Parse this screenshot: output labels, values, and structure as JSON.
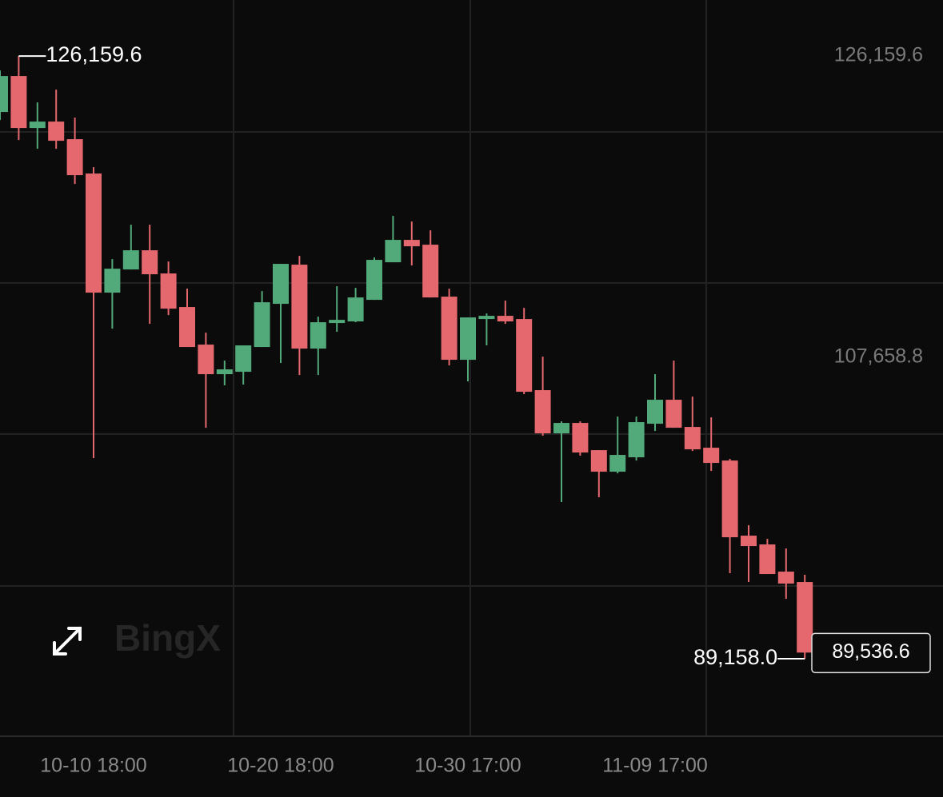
{
  "chart_data": {
    "type": "candlestick",
    "watermark": "BingX",
    "categories": [
      null,
      null,
      null,
      null,
      null,
      "10-10 18:00",
      null,
      null,
      null,
      null,
      null,
      null,
      null,
      null,
      null,
      "10-20 18:00",
      null,
      null,
      null,
      null,
      null,
      null,
      null,
      null,
      null,
      "10-30 17:00",
      null,
      null,
      null,
      null,
      null,
      null,
      null,
      null,
      null,
      "11-09 17:00",
      null,
      null,
      null,
      null,
      null,
      null,
      null,
      null
    ],
    "open": [
      122725,
      124933,
      121743,
      122136,
      121056,
      118946,
      111634,
      113057,
      114235,
      112812,
      110751,
      108444,
      106628,
      106776,
      108297,
      110947,
      113352,
      108199,
      109769,
      109867,
      111192,
      113499,
      114873,
      114578,
      111389,
      107512,
      110014,
      110211,
      110014,
      105647,
      102997,
      103635,
      101966,
      100641,
      101525,
      103586,
      105058,
      103389,
      102114,
      101328,
      96715,
      96176,
      94507,
      93869
    ],
    "high": [
      125276,
      126159.6,
      123314,
      124099,
      122381,
      119339,
      113695,
      115805,
      115805,
      113548,
      111879,
      109180,
      107463,
      108395,
      111732,
      113401,
      113891,
      110162,
      112027,
      111928,
      113793,
      116345,
      116002,
      115462,
      111879,
      110113,
      110358,
      111143,
      110702,
      107708,
      103733,
      103733,
      101966,
      104027,
      104027,
      106628,
      107463,
      105254,
      103978,
      101427,
      97353,
      96519,
      95930,
      94311
    ],
    "low": [
      122234,
      121007,
      120467,
      120467,
      118308,
      101476,
      109426,
      113057,
      109720,
      110260,
      108297,
      103340,
      105941,
      105990,
      108297,
      107315,
      106579,
      106579,
      109229,
      109818,
      111192,
      113499,
      113302,
      111339,
      107168,
      106187,
      108395,
      109720,
      105402,
      102850,
      98777,
      101623,
      99071,
      100543,
      101328,
      103144,
      103340,
      101917,
      100690,
      94409,
      93869,
      94360,
      92839,
      89158.0
    ],
    "close": [
      124933,
      121743,
      122136,
      120958,
      118848,
      111634,
      113106,
      114235,
      112763,
      110652,
      108297,
      106628,
      106923,
      108395,
      111045,
      113401,
      108199,
      109818,
      109965,
      111339,
      113646,
      114873,
      114480,
      111339,
      107512,
      110113,
      110211,
      109867,
      105549,
      102997,
      103635,
      101819,
      100641,
      101672,
      103684,
      105058,
      103340,
      102015,
      101181,
      96617,
      96077,
      94360,
      93771,
      89536.6
    ],
    "up_color": "#52a97a",
    "down_color": "#e5686f",
    "ylim": [
      84400,
      129600
    ],
    "yticks": [
      {
        "value": 126159.6,
        "label": "126,159.6"
      },
      {
        "value": 107658.8,
        "label": "107,658.8"
      }
    ],
    "annotations": [
      {
        "value": 126159.6,
        "label": "126,159.6"
      },
      {
        "value": 89158.0,
        "label": "89,158.0"
      }
    ],
    "last_price": {
      "value": 89536.6,
      "label": "89,536.6"
    }
  }
}
